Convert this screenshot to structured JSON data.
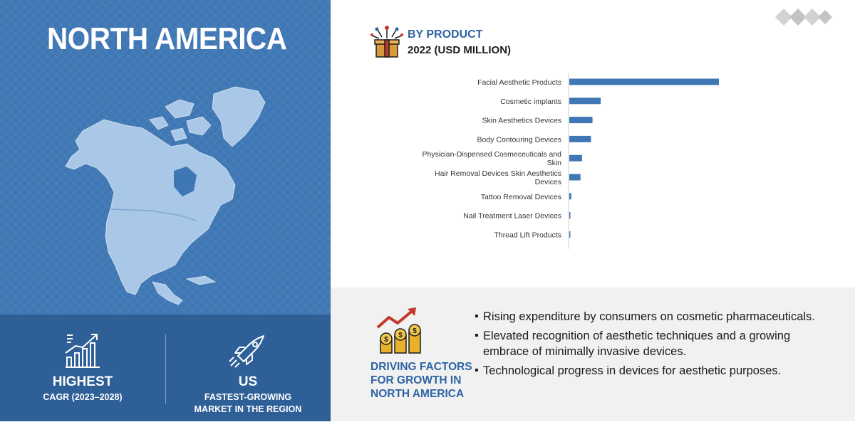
{
  "left_panel": {
    "title": "NORTH AMERICA",
    "stats": [
      {
        "icon": "bar-growth-icon",
        "value": "HIGHEST",
        "label": "CAGR (2023–2028)"
      },
      {
        "icon": "rocket-icon",
        "value": "US",
        "label_line1": "FASTEST-GROWING",
        "label_line2": "MARKET IN THE REGION"
      }
    ],
    "background_color": "#3f77b4",
    "band_color": "#2f5f97"
  },
  "chart_header": {
    "icon": "gift-box-icon",
    "title": "BY PRODUCT",
    "subtitle": "2022 (USD MILLION)"
  },
  "chart_data": {
    "type": "bar",
    "orientation": "horizontal",
    "categories": [
      [
        "Facial Aesthetic Products"
      ],
      [
        "Cosmetic implants"
      ],
      [
        "Skin Aesthetics Devices"
      ],
      [
        "Body Contouring Devices"
      ],
      [
        "Physician-Dispensed Cosmeceuticals and",
        "Skin"
      ],
      [
        "Hair Removal Devices Skin Aesthetics",
        "Devices"
      ],
      [
        "Tattoo Removal Devices"
      ],
      [
        "Nail Treatment Laser Devices"
      ],
      [
        "Thread Lift Products"
      ]
    ],
    "values": [
      100,
      21,
      15.5,
      14.5,
      8.5,
      7.5,
      1.3,
      0.7,
      0.5
    ],
    "bar_color": "#3f77b4",
    "xlim": [
      0,
      100
    ],
    "grid": false,
    "legend": "none"
  },
  "drivers": {
    "icon": "money-growth-icon",
    "title_lines": [
      "DRIVING FACTORS",
      "FOR GROWTH IN",
      "NORTH AMERICA"
    ],
    "items": [
      "Rising expenditure by consumers on cosmetic pharmaceuticals.",
      "Elevated recognition of aesthetic techniques and a growing embrace of minimally invasive devices.",
      "Technological progress in devices for aesthetic purposes."
    ]
  },
  "logo": {
    "icon": "diamond-logo-icon"
  },
  "colors": {
    "accent": "#2e64a3",
    "panel_bg": "#f1f1f1"
  }
}
